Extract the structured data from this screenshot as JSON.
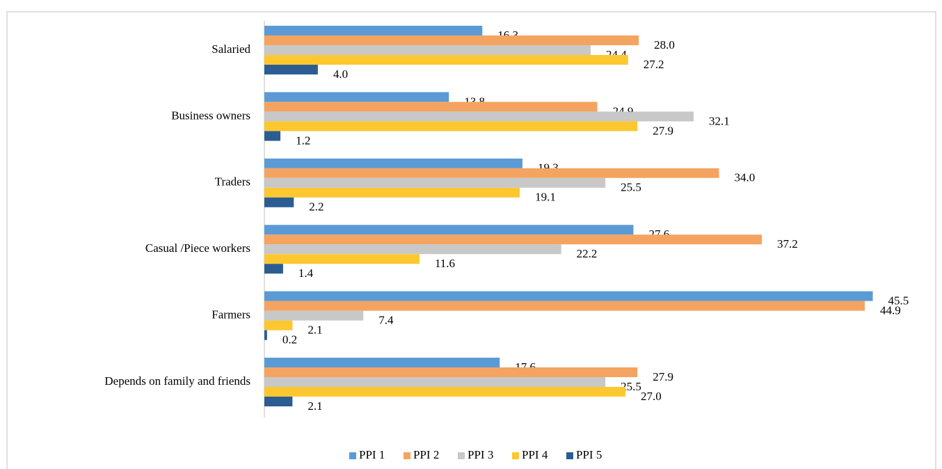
{
  "chart_data": {
    "type": "bar",
    "orientation": "horizontal",
    "categories": [
      "Salaried",
      "Business owners",
      "Traders",
      "Casual /Piece workers",
      "Farmers",
      "Depends on family and friends"
    ],
    "series": [
      {
        "name": "PPI 1",
        "color": "#5b9bd5",
        "values": [
          16.3,
          13.8,
          19.3,
          27.6,
          45.5,
          17.6
        ]
      },
      {
        "name": "PPI 2",
        "color": "#f4a460",
        "values": [
          28.0,
          24.9,
          34.0,
          37.2,
          44.9,
          27.9
        ]
      },
      {
        "name": "PPI 3",
        "color": "#c8c8c8",
        "values": [
          24.4,
          32.1,
          25.5,
          22.2,
          7.4,
          25.5
        ]
      },
      {
        "name": "PPI 4",
        "color": "#fdc82f",
        "values": [
          27.2,
          27.9,
          19.1,
          11.6,
          2.1,
          27.0
        ]
      },
      {
        "name": "PPI 5",
        "color": "#2b5d93",
        "values": [
          4.0,
          1.2,
          2.2,
          1.4,
          0.2,
          2.1
        ]
      }
    ],
    "value_labels": [
      [
        "16.3",
        "13.8",
        "19.3",
        "27.6",
        "45.5",
        "17.6"
      ],
      [
        "28.0",
        "24.9",
        "34.0",
        "37.2",
        "44.9",
        "27.9"
      ],
      [
        "24.4",
        "32.1",
        "25.5",
        "22.2",
        "7.4",
        "25.5"
      ],
      [
        "27.2",
        "27.9",
        "19.1",
        "11.6",
        "2.1",
        "27.0"
      ],
      [
        "4.0",
        "1.2",
        "2.2",
        "1.4",
        "0.2",
        "2.1"
      ]
    ],
    "xlim": [
      0,
      50
    ],
    "legend": "bottom"
  }
}
